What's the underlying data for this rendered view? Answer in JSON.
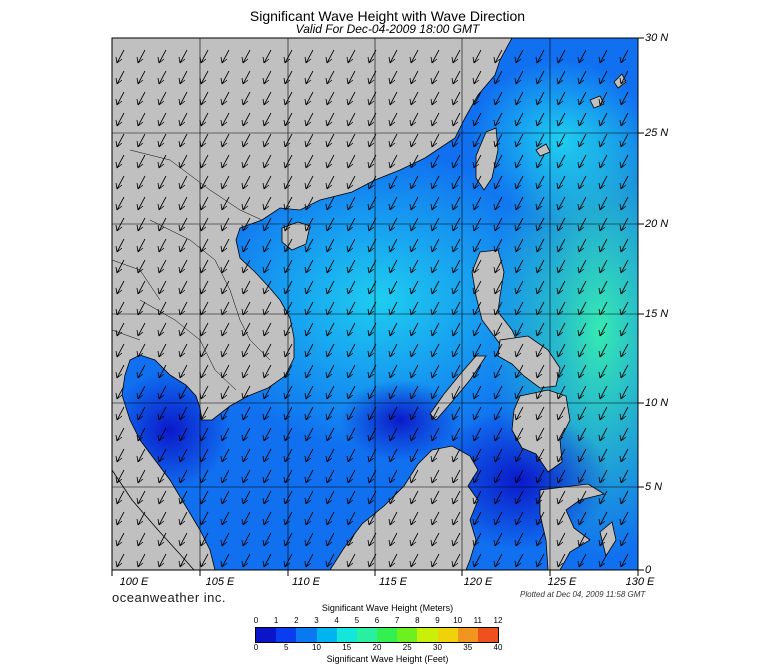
{
  "title": "Significant Wave Height with Wave Direction",
  "subtitle": "Valid For Dec-04-2009 18:00 GMT",
  "lat_labels": [
    "30 N",
    "25 N",
    "20 N",
    "15 N",
    "10 N",
    "5 N",
    "0"
  ],
  "lon_labels": [
    "100 E",
    "105 E",
    "110 E",
    "115 E",
    "120 E",
    "125 E",
    "130 E"
  ],
  "brand": "oceanweather inc.",
  "plotted_at": "Plotted at Dec 04, 2009 11:58 GMT",
  "colorbar": {
    "meters_title": "Significant Wave Height (Meters)",
    "feet_title": "Significant Wave Height (Feet)",
    "meters_ticks": [
      "0",
      "1",
      "2",
      "3",
      "4",
      "5",
      "6",
      "7",
      "8",
      "9",
      "10",
      "11",
      "12"
    ],
    "feet_ticks": [
      "0",
      "5",
      "10",
      "15",
      "20",
      "25",
      "30",
      "35",
      "40"
    ],
    "colors": [
      "#0a14c8",
      "#0a3cf0",
      "#0a78f0",
      "#00b4f0",
      "#14e6dc",
      "#28f0a0",
      "#32f050",
      "#6ef01e",
      "#c8f00a",
      "#f0d20a",
      "#f0961e",
      "#f0501e"
    ]
  },
  "colors": {
    "land": "#c0c0c0",
    "sea_low": "#0a3cf0",
    "sea_mid": "#1aaaf0",
    "sea_high": "#30e0c0"
  }
}
